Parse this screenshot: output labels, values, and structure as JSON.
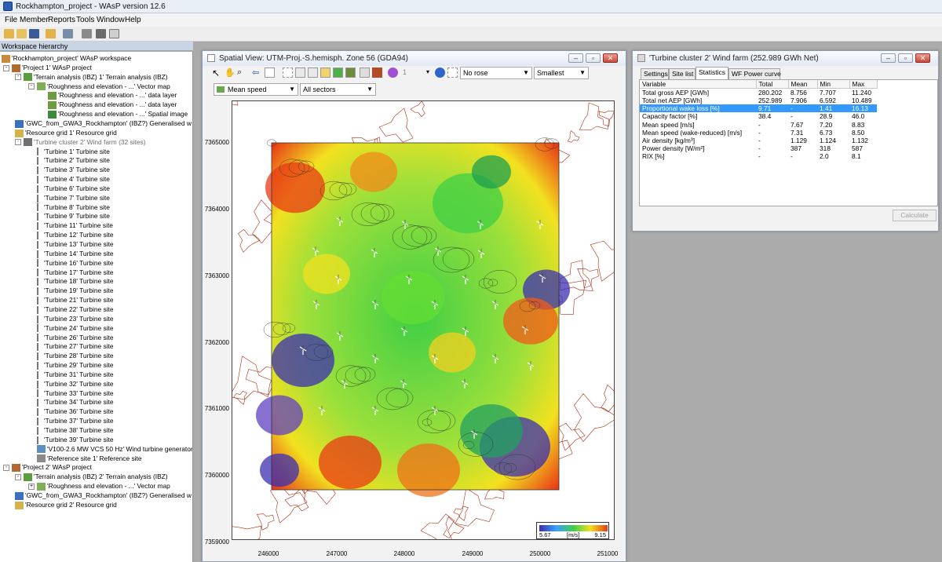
{
  "app": {
    "title": "Rockhampton_project - WAsP version 12.6"
  },
  "menu": [
    "File",
    "Member",
    "Reports",
    "Tools",
    "Window",
    "Help"
  ],
  "workspace": {
    "header": "Workspace hierarchy",
    "tree": [
      {
        "label": "'Rockhampton_project' WAsP workspace",
        "level": 0,
        "icon": "workspace-icon"
      },
      {
        "label": "'Project 1' WAsP project",
        "level": 1,
        "icon": "project-icon",
        "expander": "-"
      },
      {
        "label": "'Terrain analysis (IBZ) 1' Terrain analysis (IBZ)",
        "level": 2,
        "icon": "terrain-icon",
        "expander": "-"
      },
      {
        "label": "'Roughness and elevation - ...' Vector map",
        "level": 3,
        "icon": "vector-map-icon",
        "expander": "-"
      },
      {
        "label": "'Roughness and elevation - ...' data layer",
        "level": 4,
        "icon": "data-layer-icon"
      },
      {
        "label": "'Roughness and elevation - ...' data layer",
        "level": 4,
        "icon": "data-layer-icon"
      },
      {
        "label": "'Roughness and elevation - ...' Spatial image",
        "level": 4,
        "icon": "spatial-image-icon"
      },
      {
        "label": "'GWC_from_GWA3_Rockhampton' (IBZ?) Generalised w",
        "level": 2,
        "icon": "globe-icon"
      },
      {
        "label": "'Resource grid 1' Resource grid",
        "level": 2,
        "icon": "resource-grid-icon"
      },
      {
        "label": "'Turbine cluster 2' Wind farm (32 sites)",
        "level": 2,
        "icon": "wind-farm-icon",
        "expander": "-",
        "dim": true
      },
      {
        "label": "'Turbine 1' Turbine site",
        "level": 3,
        "icon": "turbine-icon"
      },
      {
        "label": "'Turbine 2' Turbine site",
        "level": 3,
        "icon": "turbine-icon"
      },
      {
        "label": "'Turbine 3' Turbine site",
        "level": 3,
        "icon": "turbine-icon"
      },
      {
        "label": "'Turbine 4' Turbine site",
        "level": 3,
        "icon": "turbine-icon"
      },
      {
        "label": "'Turbine 6' Turbine site",
        "level": 3,
        "icon": "turbine-icon"
      },
      {
        "label": "'Turbine 7' Turbine site",
        "level": 3,
        "icon": "turbine-icon"
      },
      {
        "label": "'Turbine 8' Turbine site",
        "level": 3,
        "icon": "turbine-icon"
      },
      {
        "label": "'Turbine 9' Turbine site",
        "level": 3,
        "icon": "turbine-icon"
      },
      {
        "label": "'Turbine 11' Turbine site",
        "level": 3,
        "icon": "turbine-icon"
      },
      {
        "label": "'Turbine 12' Turbine site",
        "level": 3,
        "icon": "turbine-icon"
      },
      {
        "label": "'Turbine 13' Turbine site",
        "level": 3,
        "icon": "turbine-icon"
      },
      {
        "label": "'Turbine 14' Turbine site",
        "level": 3,
        "icon": "turbine-icon"
      },
      {
        "label": "'Turbine 16' Turbine site",
        "level": 3,
        "icon": "turbine-icon"
      },
      {
        "label": "'Turbine 17' Turbine site",
        "level": 3,
        "icon": "turbine-icon"
      },
      {
        "label": "'Turbine 18' Turbine site",
        "level": 3,
        "icon": "turbine-icon"
      },
      {
        "label": "'Turbine 19' Turbine site",
        "level": 3,
        "icon": "turbine-icon"
      },
      {
        "label": "'Turbine 21' Turbine site",
        "level": 3,
        "icon": "turbine-icon"
      },
      {
        "label": "'Turbine 22' Turbine site",
        "level": 3,
        "icon": "turbine-icon"
      },
      {
        "label": "'Turbine 23' Turbine site",
        "level": 3,
        "icon": "turbine-icon"
      },
      {
        "label": "'Turbine 24' Turbine site",
        "level": 3,
        "icon": "turbine-icon"
      },
      {
        "label": "'Turbine 26' Turbine site",
        "level": 3,
        "icon": "turbine-icon"
      },
      {
        "label": "'Turbine 27' Turbine site",
        "level": 3,
        "icon": "turbine-icon"
      },
      {
        "label": "'Turbine 28' Turbine site",
        "level": 3,
        "icon": "turbine-icon"
      },
      {
        "label": "'Turbine 29' Turbine site",
        "level": 3,
        "icon": "turbine-icon"
      },
      {
        "label": "'Turbine 31' Turbine site",
        "level": 3,
        "icon": "turbine-icon"
      },
      {
        "label": "'Turbine 32' Turbine site",
        "level": 3,
        "icon": "turbine-icon"
      },
      {
        "label": "'Turbine 33' Turbine site",
        "level": 3,
        "icon": "turbine-icon"
      },
      {
        "label": "'Turbine 34' Turbine site",
        "level": 3,
        "icon": "turbine-icon"
      },
      {
        "label": "'Turbine 36' Turbine site",
        "level": 3,
        "icon": "turbine-icon"
      },
      {
        "label": "'Turbine 37' Turbine site",
        "level": 3,
        "icon": "turbine-icon"
      },
      {
        "label": "'Turbine 38' Turbine site",
        "level": 3,
        "icon": "turbine-icon"
      },
      {
        "label": "'Turbine 39' Turbine site",
        "level": 3,
        "icon": "turbine-icon"
      },
      {
        "label": "'V100-2.6 MW VCS 50 Hz' Wind turbine generator",
        "level": 3,
        "icon": "generator-icon"
      },
      {
        "label": "'Reference site 1' Reference site",
        "level": 3,
        "icon": "reference-site-icon"
      },
      {
        "label": "'Project 2' WAsP project",
        "level": 1,
        "icon": "project-icon",
        "expander": "-"
      },
      {
        "label": "'Terrain analysis (IBZ) 2' Terrain analysis (IBZ)",
        "level": 2,
        "icon": "terrain-icon",
        "expander": "-"
      },
      {
        "label": "'Roughness and elevation - ...' Vector map",
        "level": 3,
        "icon": "vector-map-icon",
        "expander": "+"
      },
      {
        "label": "'GWC_from_GWA3_Rockhampton' (IBZ?) Generalised w",
        "level": 2,
        "icon": "globe-icon"
      },
      {
        "label": "'Resource grid 2' Resource grid",
        "level": 2,
        "icon": "resource-grid-icon"
      }
    ]
  },
  "spatial_view": {
    "title": "Spatial View: UTM-Proj.-S.hemisph. Zone 56 (GDA94)",
    "page_value": "1",
    "rose": "No rose",
    "size": "Smallest",
    "layer": "Mean speed",
    "sectors": "All sectors",
    "y_ticks": [
      "7365000",
      "7364000",
      "7363000",
      "7362000",
      "7361000",
      "7360000",
      "7359000"
    ],
    "x_ticks": [
      "246000",
      "247000",
      "248000",
      "249000",
      "250000",
      "251000"
    ],
    "legend": {
      "min": "5.67",
      "unit": "[m/s]",
      "max": "9.15"
    },
    "colors": {
      "contour": "#b02a10",
      "low": "#3b2fb0",
      "mid": "#3fcf45",
      "high": "#e83a16"
    }
  },
  "wind_farm": {
    "title": "'Turbine cluster 2' Wind farm (252.989 GWh Net)",
    "tabs": [
      "Settings",
      "Site list",
      "Statistics",
      "WF Power curve"
    ],
    "selected_tab": "Statistics",
    "columns": [
      "Variable",
      "Total",
      "Mean",
      "Min",
      "Max"
    ],
    "rows": [
      [
        "Total gross AEP [GWh]",
        "280.202",
        "8.756",
        "7.707",
        "11.240"
      ],
      [
        "Total net AEP [GWh]",
        "252.989",
        "7.906",
        "6.592",
        "10.489"
      ],
      [
        "Proportional wake loss [%]",
        "9.71",
        "-",
        "1.41",
        "16.13"
      ],
      [
        "Capacity factor [%]",
        "38.4",
        "-",
        "28.9",
        "46.0"
      ],
      [
        "Mean speed [m/s]",
        "-",
        "7.67",
        "7.20",
        "8.83"
      ],
      [
        "Mean speed (wake-reduced) [m/s]",
        "-",
        "7.31",
        "6.73",
        "8.50"
      ],
      [
        "Air density [kg/m³]",
        "-",
        "1.129",
        "1.124",
        "1.132"
      ],
      [
        "Power density [W/m²]",
        "-",
        "387",
        "318",
        "587"
      ],
      [
        "RIX [%]",
        "-",
        "-",
        "2.0",
        "8.1"
      ]
    ],
    "highlighted_row": 2,
    "calculate_label": "Calculate"
  }
}
